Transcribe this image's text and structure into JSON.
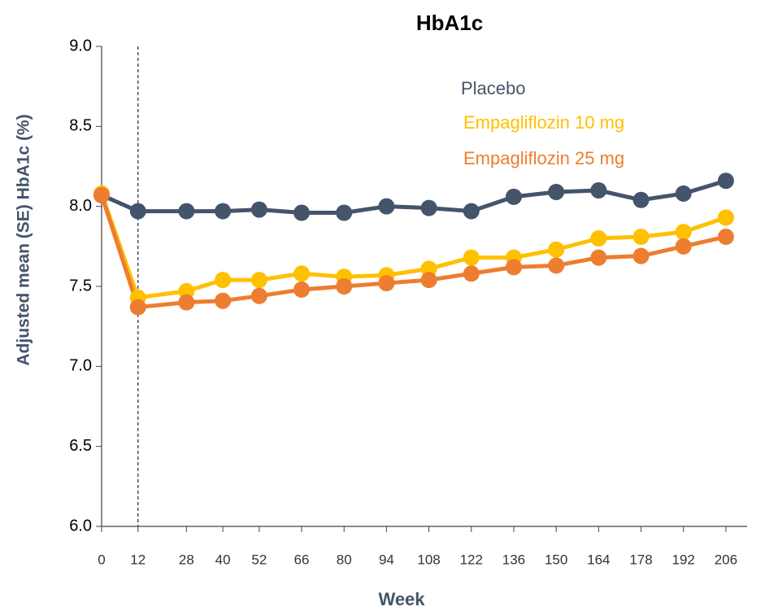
{
  "chart_data": {
    "type": "line",
    "title": "HbA1c",
    "x_label": "Week",
    "y_label": "Adjusted mean (SE) HbA1c (%)",
    "x": [
      0,
      12,
      28,
      40,
      52,
      66,
      80,
      94,
      108,
      122,
      136,
      150,
      164,
      178,
      192,
      206
    ],
    "series": [
      {
        "name": "Placebo",
        "color": "#44546a",
        "values": [
          8.07,
          7.97,
          7.97,
          7.97,
          7.98,
          7.96,
          7.96,
          8.0,
          7.99,
          7.97,
          8.06,
          8.09,
          8.1,
          8.04,
          8.08,
          8.16
        ]
      },
      {
        "name": "Empagliflozin 10 mg",
        "color": "#ffc000",
        "values": [
          8.08,
          7.43,
          7.47,
          7.54,
          7.54,
          7.58,
          7.56,
          7.57,
          7.61,
          7.68,
          7.68,
          7.73,
          7.8,
          7.81,
          7.84,
          7.93
        ]
      },
      {
        "name": "Empagliflozin 25 mg",
        "color": "#ed7d31",
        "values": [
          8.07,
          7.37,
          7.4,
          7.41,
          7.44,
          7.48,
          7.5,
          7.52,
          7.54,
          7.58,
          7.62,
          7.63,
          7.68,
          7.69,
          7.75,
          7.81
        ]
      }
    ],
    "xlim": [
      0,
      213
    ],
    "xticks": [
      0,
      12,
      28,
      40,
      52,
      66,
      80,
      94,
      108,
      122,
      136,
      150,
      164,
      178,
      192,
      206
    ],
    "ylim": [
      6,
      9
    ],
    "yticks": [
      {
        "value": 6,
        "label": "6.0"
      },
      {
        "value": 6.5,
        "label": "6.5"
      },
      {
        "value": 7,
        "label": "7.0"
      },
      {
        "value": 7.5,
        "label": "7.5"
      },
      {
        "value": 8,
        "label": "8.0"
      },
      {
        "value": 8.5,
        "label": "8.5"
      },
      {
        "value": 9,
        "label": "9.0"
      }
    ],
    "reference_line_x": 12,
    "grid": false
  }
}
